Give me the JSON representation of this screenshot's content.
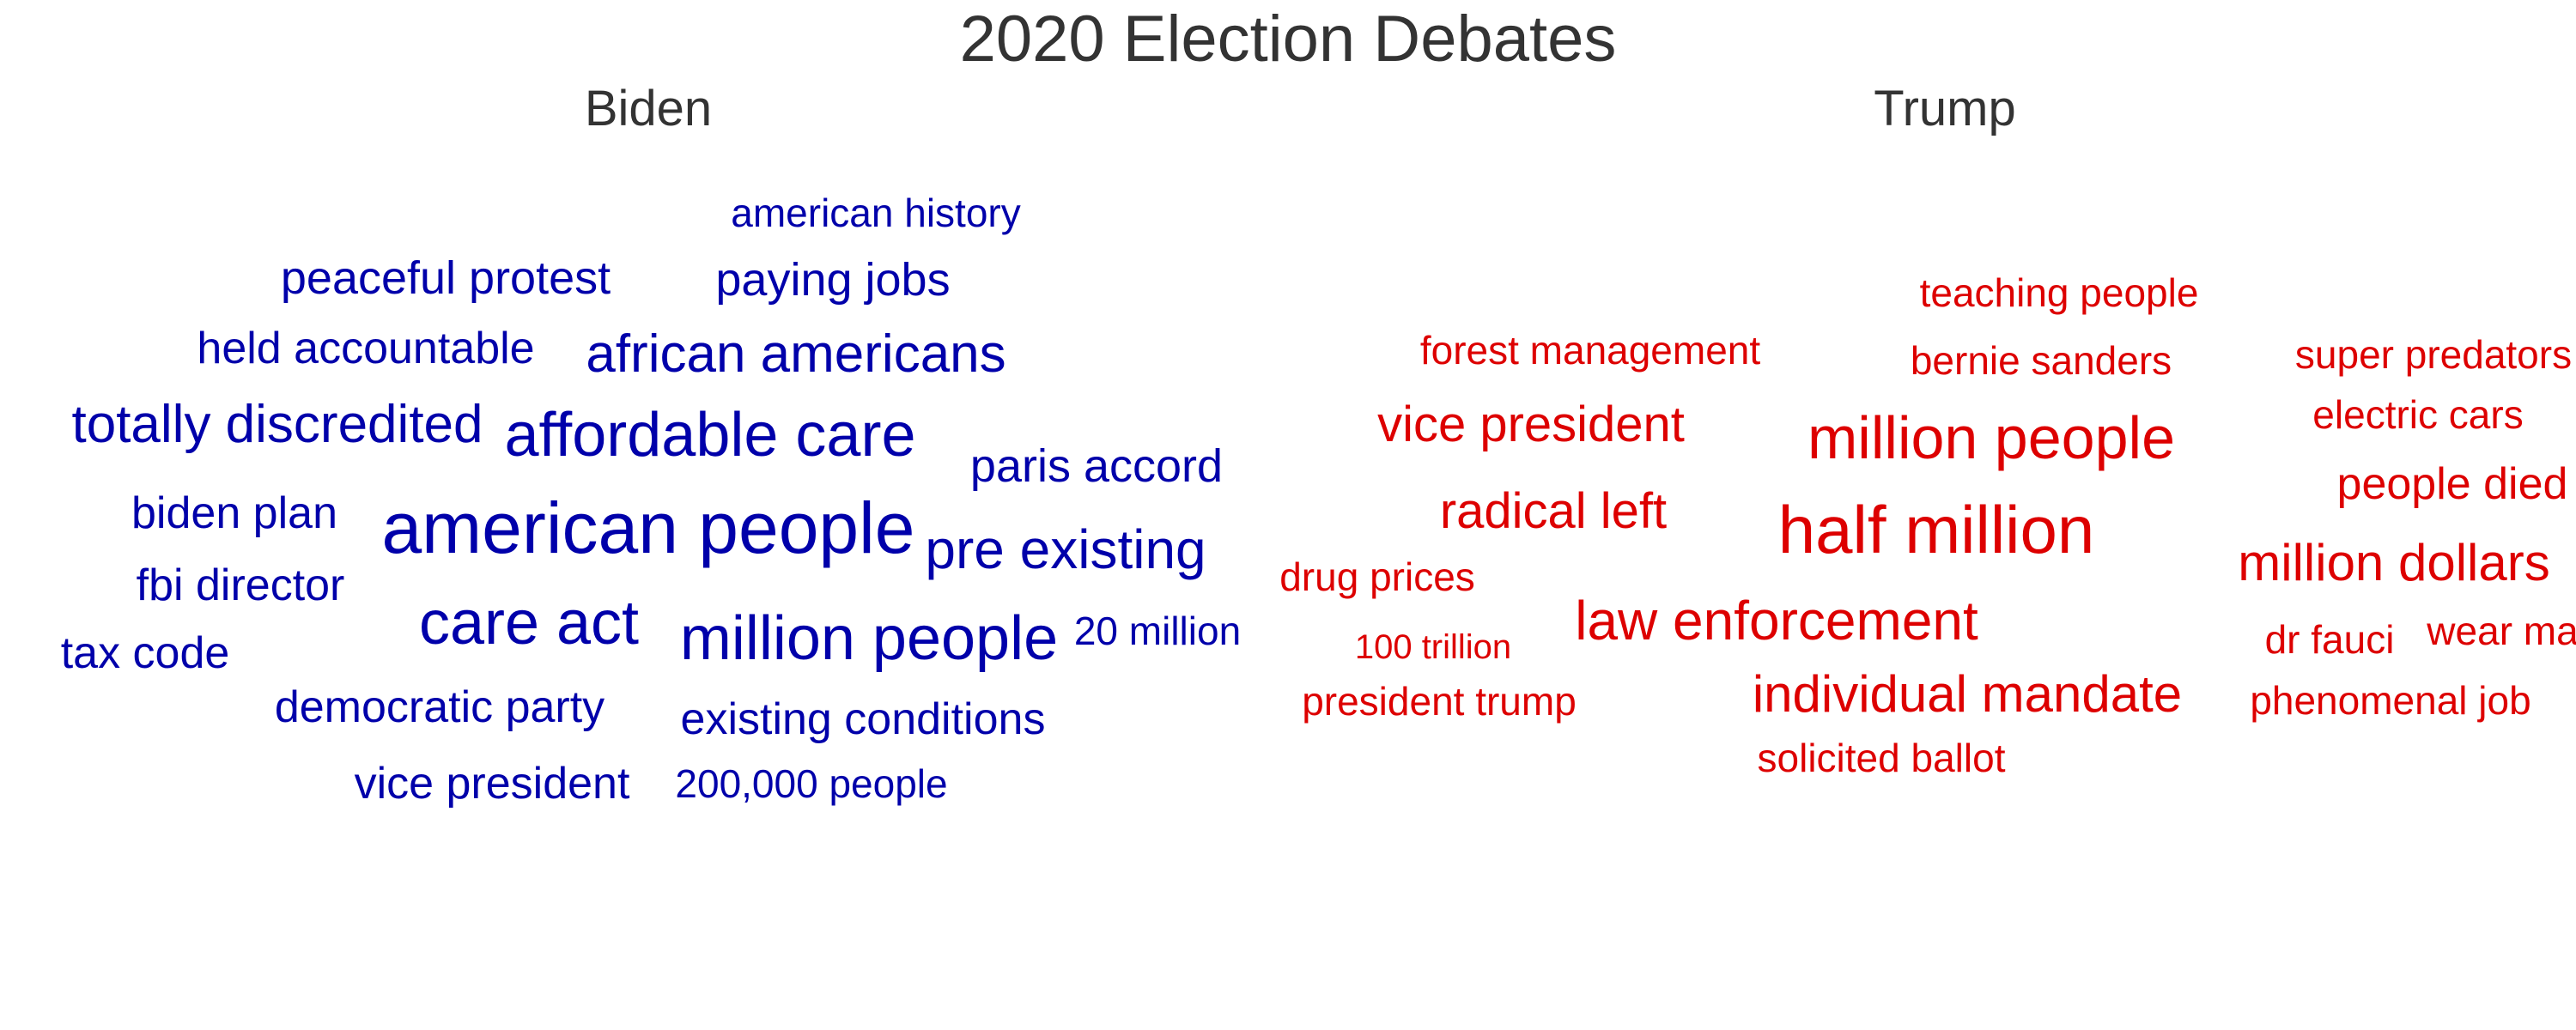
{
  "chart_data": {
    "type": "wordcloud",
    "title": "2020 Election Debates",
    "title_color": "#333333",
    "panels": [
      {
        "name": "Biden",
        "color": "#0000AA",
        "words": [
          {
            "text": "american history",
            "size": 0.35,
            "x": 0.685,
            "y": 0.185
          },
          {
            "text": "peaceful protest",
            "size": 0.45,
            "x": 0.335,
            "y": 0.265
          },
          {
            "text": "paying jobs",
            "size": 0.45,
            "x": 0.65,
            "y": 0.267
          },
          {
            "text": "held accountable",
            "size": 0.42,
            "x": 0.27,
            "y": 0.35
          },
          {
            "text": "african americans",
            "size": 0.55,
            "x": 0.62,
            "y": 0.357
          },
          {
            "text": "totally discredited",
            "size": 0.55,
            "x": 0.198,
            "y": 0.443
          },
          {
            "text": "affordable care",
            "size": 0.67,
            "x": 0.55,
            "y": 0.455
          },
          {
            "text": "paris accord",
            "size": 0.45,
            "x": 0.865,
            "y": 0.493
          },
          {
            "text": "biden plan",
            "size": 0.43,
            "x": 0.163,
            "y": 0.55
          },
          {
            "text": "american people",
            "size": 0.82,
            "x": 0.5,
            "y": 0.568
          },
          {
            "text": "pre existing",
            "size": 0.57,
            "x": 0.84,
            "y": 0.594
          },
          {
            "text": "fbi director",
            "size": 0.43,
            "x": 0.168,
            "y": 0.637
          },
          {
            "text": "care act",
            "size": 0.67,
            "x": 0.403,
            "y": 0.683
          },
          {
            "text": "million people",
            "size": 0.67,
            "x": 0.68,
            "y": 0.702
          },
          {
            "text": "20 million",
            "size": 0.35,
            "x": 0.915,
            "y": 0.693
          },
          {
            "text": "tax code",
            "size": 0.43,
            "x": 0.09,
            "y": 0.72
          },
          {
            "text": "democratic party",
            "size": 0.43,
            "x": 0.33,
            "y": 0.785
          },
          {
            "text": "existing conditions",
            "size": 0.43,
            "x": 0.675,
            "y": 0.8
          },
          {
            "text": "vice president",
            "size": 0.43,
            "x": 0.373,
            "y": 0.878
          },
          {
            "text": "200,000 people",
            "size": 0.35,
            "x": 0.633,
            "y": 0.878
          }
        ]
      },
      {
        "name": "Trump",
        "color": "#DD0000",
        "words": [
          {
            "text": "teaching people",
            "size": 0.35,
            "x": 0.6,
            "y": 0.282
          },
          {
            "text": "forest management",
            "size": 0.35,
            "x": 0.218,
            "y": 0.352
          },
          {
            "text": "bernie sanders",
            "size": 0.35,
            "x": 0.585,
            "y": 0.365
          },
          {
            "text": "super predators",
            "size": 0.35,
            "x": 0.905,
            "y": 0.357
          },
          {
            "text": "vice president",
            "size": 0.5,
            "x": 0.17,
            "y": 0.443
          },
          {
            "text": "million people",
            "size": 0.65,
            "x": 0.545,
            "y": 0.458
          },
          {
            "text": "electric cars",
            "size": 0.35,
            "x": 0.892,
            "y": 0.43
          },
          {
            "text": "people died",
            "size": 0.43,
            "x": 0.92,
            "y": 0.515
          },
          {
            "text": "radical left",
            "size": 0.5,
            "x": 0.188,
            "y": 0.548
          },
          {
            "text": "half million",
            "size": 0.75,
            "x": 0.5,
            "y": 0.57
          },
          {
            "text": "million dollars",
            "size": 0.53,
            "x": 0.873,
            "y": 0.61
          },
          {
            "text": "drug prices",
            "size": 0.35,
            "x": 0.045,
            "y": 0.627
          },
          {
            "text": "law enforcement",
            "size": 0.57,
            "x": 0.37,
            "y": 0.68
          },
          {
            "text": "100 trillion",
            "size": 0.28,
            "x": 0.09,
            "y": 0.712
          },
          {
            "text": "dr fauci",
            "size": 0.35,
            "x": 0.82,
            "y": 0.703
          },
          {
            "text": "wear masks",
            "size": 0.35,
            "x": 0.985,
            "y": 0.693
          },
          {
            "text": "president trump",
            "size": 0.35,
            "x": 0.095,
            "y": 0.778
          },
          {
            "text": "individual mandate",
            "size": 0.53,
            "x": 0.525,
            "y": 0.77
          },
          {
            "text": "phenomenal job",
            "size": 0.35,
            "x": 0.87,
            "y": 0.777
          },
          {
            "text": "solicited ballot",
            "size": 0.35,
            "x": 0.455,
            "y": 0.847
          }
        ]
      }
    ]
  }
}
